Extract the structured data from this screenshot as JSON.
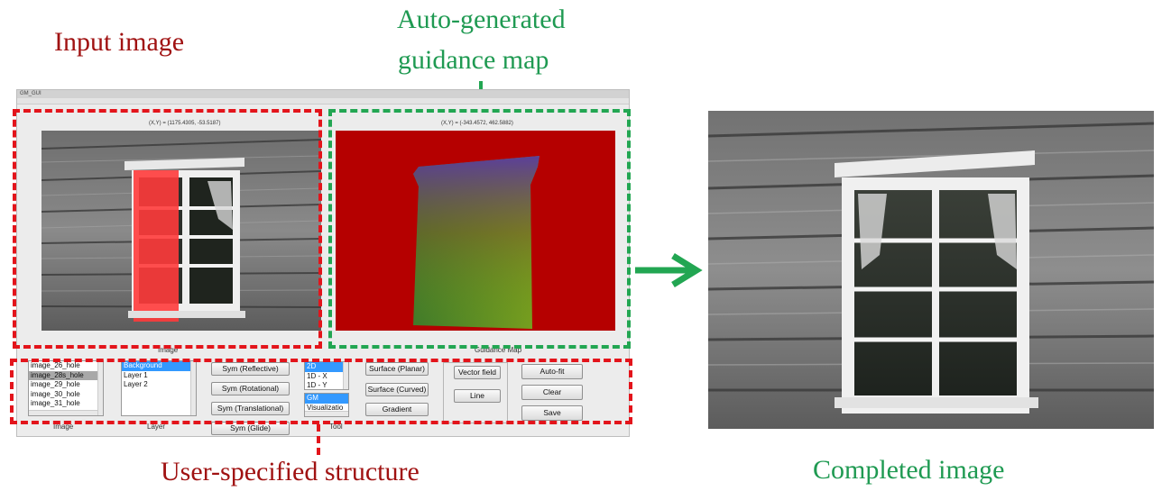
{
  "captions": {
    "input_image": "Input image",
    "guidance_map_line1": "Auto-generated",
    "guidance_map_line2": "guidance map",
    "user_structure": "User-specified structure",
    "completed_image": "Completed image"
  },
  "gui": {
    "window_title": "GM_GUI",
    "input_axes": {
      "coord": "(X,Y) = (1175.4305, -53.5187)",
      "label": "Image"
    },
    "guidance_axes": {
      "coord": "(X,Y) = (-343.4572, 462.5882)",
      "label": "Guidance Map"
    },
    "image_list": {
      "items": [
        "image_26_hole",
        "image_28s_hole",
        "image_29_hole",
        "image_30_hole",
        "image_31_hole"
      ],
      "selected": "image_28s_hole",
      "label": "Image"
    },
    "layer_list": {
      "items": [
        "Background",
        "Layer 1",
        "Layer 2"
      ],
      "selected": "Background",
      "label": "Layer"
    },
    "sym_buttons": [
      "Sym (Reflective)",
      "Sym (Rotational)",
      "Sym (Translational)",
      "Sym (Glide)"
    ],
    "type_list": {
      "items": [
        "2D",
        "1D - X",
        "1D - Y"
      ],
      "selected": "2D"
    },
    "view_list": {
      "items": [
        "GM",
        "Visualizatio"
      ],
      "selected": "GM",
      "label": "Tool"
    },
    "surface_buttons": [
      "Surface (Planar)",
      "Surface (Curved)",
      "Gradient"
    ],
    "field_buttons": [
      "Vector field",
      "Line"
    ],
    "action_buttons": [
      "Auto-fit",
      "Clear",
      "Save"
    ]
  },
  "colors": {
    "caption_red": "#a01212",
    "caption_green": "#1f9a52",
    "dash_red": "#e3141b",
    "dash_green": "#22a652",
    "guidance_bg": "#b50000",
    "selection": "#3399ff"
  },
  "icons": {
    "arrow": "right-arrow-icon"
  }
}
